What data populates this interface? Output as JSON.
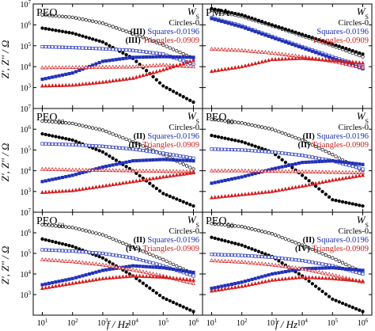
{
  "figure": {
    "ylabel": "Z', Z'' / Ω",
    "xlabel": "f / Hz",
    "legend_labels": {
      "circles": "Circles-0",
      "squares": "Squares-0.0196",
      "triangles": "Triangles-0.0909",
      "w": "W",
      "w_sub": "S"
    }
  },
  "colors": {
    "circles": "#000000",
    "squares": "#1f2fb8",
    "triangles": "#d21e1e",
    "axis": "#000000"
  },
  "chart_data": [
    {
      "type": "scatter",
      "title": "PEO",
      "title_sub": "",
      "marks": {
        "squares": "(III)",
        "triangles": "(III)"
      },
      "xscale": "log",
      "yscale": "log",
      "xlim": [
        5,
        2000000
      ],
      "ylim": [
        100,
        10000000
      ],
      "xticks": [
        "10^1",
        "10^2",
        "10^3",
        "10^4",
        "10^5",
        "10^6"
      ],
      "yticks": [
        "10^7",
        "10^6",
        "10^5",
        "10^4",
        "10^3"
      ],
      "series": [
        {
          "name": "Circles-0",
          "kind": "circles",
          "x": [
            10,
            100,
            1000,
            10000,
            100000,
            1000000
          ],
          "zre": [
            3000000,
            2300000,
            1200000,
            380000,
            110000,
            25000
          ],
          "zim": [
            700000,
            400000,
            150000,
            25000,
            1200,
            200
          ]
        },
        {
          "name": "Squares-0.0196",
          "kind": "squares",
          "x": [
            10,
            100,
            1000,
            10000,
            100000,
            1000000
          ],
          "zre": [
            90000,
            82000,
            72000,
            60000,
            40000,
            13000
          ],
          "zim": [
            2500,
            5000,
            18000,
            28000,
            30000,
            28000
          ]
        },
        {
          "name": "Triangles-0.0909",
          "kind": "triangles",
          "x": [
            10,
            100,
            1000,
            10000,
            100000,
            1000000
          ],
          "zre": [
            9000,
            9300,
            9500,
            9800,
            12000,
            10000
          ],
          "zim": [
            1200,
            1300,
            1800,
            2800,
            7000,
            20000
          ]
        }
      ]
    },
    {
      "type": "scatter",
      "title": "PMA",
      "title_sub": "",
      "marks": {
        "squares": "",
        "triangles": ""
      },
      "xscale": "log",
      "yscale": "log",
      "xlim": [
        5,
        2000000
      ],
      "ylim": [
        100,
        10000000
      ],
      "series": [
        {
          "name": "Circles-0",
          "kind": "circles",
          "x": [
            10,
            100,
            1000,
            10000,
            100000,
            1000000
          ],
          "zre": [
            5000000,
            2500000,
            900000,
            300000,
            100000,
            30000
          ],
          "zim": [
            6000000,
            3000000,
            1000000,
            350000,
            120000,
            40000
          ]
        },
        {
          "name": "Squares-0.0196",
          "kind": "squares",
          "x": [
            10,
            100,
            1000,
            10000,
            100000,
            1000000
          ],
          "zre": [
            2200000,
            900000,
            280000,
            90000,
            30000,
            10000
          ],
          "zim": [
            2000000,
            800000,
            250000,
            80000,
            25000,
            8000
          ]
        },
        {
          "name": "Triangles-0.0909",
          "kind": "triangles",
          "x": [
            10,
            100,
            1000,
            10000,
            100000,
            1000000
          ],
          "zre": [
            70000,
            60000,
            45000,
            30000,
            18000,
            9000
          ],
          "zim": [
            6000,
            10000,
            22000,
            25000,
            20000,
            15000
          ]
        }
      ]
    },
    {
      "type": "scatter",
      "title": "PEO",
      "title_sub": "90",
      "marks": {
        "squares": "(II)",
        "triangles": "(II)"
      },
      "xscale": "log",
      "yscale": "log",
      "xlim": [
        5,
        2000000
      ],
      "ylim": [
        100,
        10000000
      ],
      "series": [
        {
          "name": "Circles-0",
          "kind": "circles",
          "x": [
            10,
            100,
            1000,
            10000,
            100000,
            1000000
          ],
          "zre": [
            2500000,
            1900000,
            900000,
            250000,
            60000,
            12000
          ],
          "zim": [
            600000,
            300000,
            80000,
            10000,
            800,
            200
          ]
        },
        {
          "name": "Squares-0.0196",
          "kind": "squares",
          "x": [
            10,
            100,
            1000,
            10000,
            100000,
            1000000
          ],
          "zre": [
            200000,
            180000,
            150000,
            110000,
            70000,
            40000
          ],
          "zim": [
            3000,
            6000,
            15000,
            30000,
            35000,
            30000
          ]
        },
        {
          "name": "Triangles-0.0909",
          "kind": "triangles",
          "x": [
            10,
            100,
            1000,
            10000,
            100000,
            1000000
          ],
          "zre": [
            12000,
            11000,
            10500,
            10000,
            9500,
            9000
          ],
          "zim": [
            900,
            1100,
            1800,
            3000,
            5000,
            8000
          ]
        }
      ]
    },
    {
      "type": "scatter",
      "title": "PEO",
      "title_sub": "80",
      "marks": {
        "squares": "(II)",
        "triangles": "(II)"
      },
      "xscale": "log",
      "yscale": "log",
      "xlim": [
        5,
        2000000
      ],
      "ylim": [
        100,
        10000000
      ],
      "series": [
        {
          "name": "Circles-0",
          "kind": "circles",
          "x": [
            10,
            100,
            1000,
            10000,
            100000,
            1000000
          ],
          "zre": [
            3000000,
            2000000,
            1000000,
            300000,
            60000,
            10000
          ],
          "zim": [
            500000,
            250000,
            80000,
            6000,
            400,
            200
          ]
        },
        {
          "name": "Squares-0.0196",
          "kind": "squares",
          "x": [
            10,
            100,
            1000,
            10000,
            100000,
            1000000
          ],
          "zre": [
            110000,
            100000,
            80000,
            55000,
            30000,
            12000
          ],
          "zim": [
            2500,
            5000,
            12000,
            25000,
            30000,
            20000
          ]
        },
        {
          "name": "Triangles-0.0909",
          "kind": "triangles",
          "x": [
            10,
            100,
            1000,
            10000,
            100000,
            1000000
          ],
          "zre": [
            10000,
            10000,
            9500,
            9000,
            8500,
            8000
          ],
          "zim": [
            500,
            700,
            1000,
            1800,
            3500,
            6000
          ]
        }
      ]
    },
    {
      "type": "scatter",
      "title": "PEO",
      "title_sub": "60",
      "marks": {
        "squares": "(II)",
        "triangles": "(IV)"
      },
      "xscale": "log",
      "yscale": "log",
      "xlim": [
        5,
        2000000
      ],
      "ylim": [
        100,
        10000000
      ],
      "series": [
        {
          "name": "Circles-0",
          "kind": "circles",
          "x": [
            10,
            100,
            1000,
            10000,
            100000,
            1000000
          ],
          "zre": [
            2500000,
            1800000,
            800000,
            200000,
            50000,
            10000
          ],
          "zim": [
            500000,
            220000,
            60000,
            8000,
            700,
            150
          ]
        },
        {
          "name": "Squares-0.0196",
          "kind": "squares",
          "x": [
            10,
            100,
            1000,
            10000,
            100000,
            1000000
          ],
          "zre": [
            150000,
            130000,
            100000,
            60000,
            25000,
            8000
          ],
          "zim": [
            3000,
            6000,
            15000,
            25000,
            20000,
            12000
          ]
        },
        {
          "name": "Triangles-0.0909",
          "kind": "triangles",
          "x": [
            10,
            100,
            1000,
            10000,
            100000,
            1000000
          ],
          "zre": [
            50000,
            40000,
            28000,
            16000,
            8000,
            3500
          ],
          "zim": [
            2000,
            3500,
            6000,
            8000,
            7000,
            5000
          ]
        }
      ]
    },
    {
      "type": "scatter",
      "title": "PEO",
      "title_sub": "50",
      "marks": {
        "squares": "(II)",
        "triangles": "(IV)"
      },
      "xscale": "log",
      "yscale": "log",
      "xlim": [
        5,
        2000000
      ],
      "ylim": [
        100,
        10000000
      ],
      "series": [
        {
          "name": "Circles-0",
          "kind": "circles",
          "x": [
            10,
            100,
            1000,
            10000,
            100000,
            1000000
          ],
          "zre": [
            2800000,
            2000000,
            900000,
            250000,
            60000,
            12000
          ],
          "zim": [
            600000,
            250000,
            70000,
            8000,
            600,
            150
          ]
        },
        {
          "name": "Squares-0.0196",
          "kind": "squares",
          "x": [
            10,
            100,
            1000,
            10000,
            100000,
            1000000
          ],
          "zre": [
            90000,
            80000,
            65000,
            45000,
            25000,
            10000
          ],
          "zim": [
            2000,
            4000,
            10000,
            18000,
            20000,
            15000
          ]
        },
        {
          "name": "Triangles-0.0909",
          "kind": "triangles",
          "x": [
            10,
            100,
            1000,
            10000,
            100000,
            1000000
          ],
          "zre": [
            45000,
            38000,
            28000,
            18000,
            9000,
            4000
          ],
          "zim": [
            1500,
            2500,
            5000,
            7000,
            6000,
            4500
          ]
        }
      ]
    }
  ]
}
